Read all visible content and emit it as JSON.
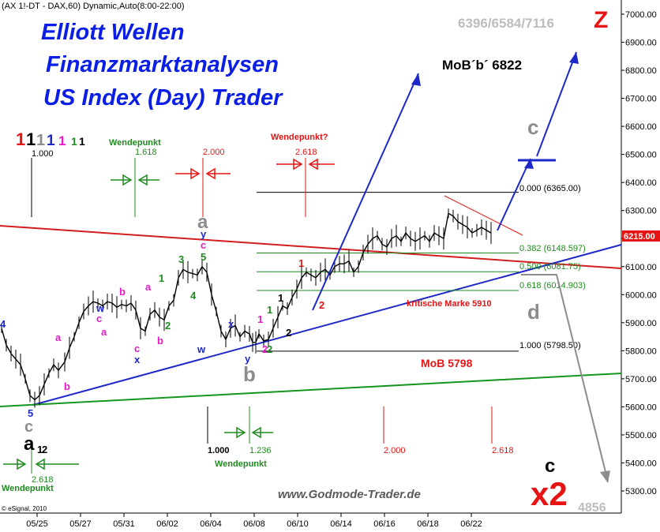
{
  "header": {
    "instrument": "(AX 1!-DT - DAX,60) Dynamic,Auto(8:00-22:00)",
    "values": "6396/6584/7116",
    "z_label": "Z"
  },
  "title": {
    "line1": "Elliott Wellen",
    "line2": "Finanzmarktanalysen",
    "line3": "US Index (Day) Trader"
  },
  "footer": {
    "website": "www.Godmode-Trader.de",
    "copyright": "© eSignal, 2010",
    "level": "4856"
  },
  "annotations": {
    "mob_b": "MoB´b´ 6822",
    "mob_low": "MoB 5798",
    "kritische": "kritische Marke 5910",
    "wendepunkt": "Wendepunkt",
    "wendepunkt_q": "Wendepunkt?",
    "fib_0": "0.000 (6365.00)",
    "fib_382": "0.382 (6148.597)",
    "fib_500": "0.500 (6081.75)",
    "fib_618": "0.618 (6014.903)",
    "fib_1000": "1.000 (5798.50)",
    "price_now": "6215.00",
    "wave_c": "c",
    "wave_d": "d",
    "wave_x2": "x2",
    "wave_a": "a",
    "wave_b": "b",
    "ratio_1000": "1.000",
    "ratio_1618": "1.618",
    "ratio_2000": "2.000",
    "ratio_2618": "2.618",
    "ratio_1236": "1.236"
  },
  "chart_data": {
    "type": "candlestick",
    "xlabel": "",
    "ylabel": "",
    "ylim": [
      5220,
      7060
    ],
    "x_ticks": [
      "05/25",
      "05/27",
      "05/31",
      "06/02",
      "06/04",
      "06/08",
      "06/10",
      "06/14",
      "06/16",
      "06/18",
      "06/22"
    ],
    "y_ticks": [
      "5300.00",
      "5400.00",
      "5500.00",
      "5600.00",
      "5700.00",
      "5800.00",
      "5900.00",
      "6000.00",
      "6100.00",
      "6200.00",
      "6300.00",
      "6400.00",
      "6500.00",
      "6600.00",
      "6700.00",
      "6800.00",
      "6900.00",
      "7000.00"
    ],
    "price_path": [
      [
        0,
        5880
      ],
      [
        6,
        5820
      ],
      [
        12,
        5790
      ],
      [
        18,
        5770
      ],
      [
        24,
        5750
      ],
      [
        30,
        5700
      ],
      [
        36,
        5640
      ],
      [
        42,
        5625
      ],
      [
        48,
        5640
      ],
      [
        54,
        5680
      ],
      [
        60,
        5720
      ],
      [
        66,
        5750
      ],
      [
        72,
        5730
      ],
      [
        80,
        5760
      ],
      [
        86,
        5810
      ],
      [
        92,
        5850
      ],
      [
        98,
        5900
      ],
      [
        104,
        5940
      ],
      [
        110,
        5960
      ],
      [
        116,
        5975
      ],
      [
        122,
        5970
      ],
      [
        128,
        5960
      ],
      [
        134,
        5975
      ],
      [
        140,
        5970
      ],
      [
        146,
        5955
      ],
      [
        152,
        5965
      ],
      [
        158,
        5960
      ],
      [
        164,
        5970
      ],
      [
        170,
        5945
      ],
      [
        176,
        5880
      ],
      [
        182,
        5870
      ],
      [
        188,
        5930
      ],
      [
        194,
        5945
      ],
      [
        200,
        5920
      ],
      [
        206,
        5910
      ],
      [
        212,
        5960
      ],
      [
        218,
        5980
      ],
      [
        224,
        6060
      ],
      [
        230,
        6090
      ],
      [
        236,
        6080
      ],
      [
        242,
        6075
      ],
      [
        248,
        6070
      ],
      [
        254,
        6100
      ],
      [
        260,
        6080
      ],
      [
        266,
        6000
      ],
      [
        272,
        5940
      ],
      [
        278,
        5870
      ],
      [
        284,
        5840
      ],
      [
        290,
        5880
      ],
      [
        296,
        5890
      ],
      [
        302,
        5850
      ],
      [
        308,
        5870
      ],
      [
        314,
        5860
      ],
      [
        318,
        5830
      ],
      [
        322,
        5830
      ],
      [
        326,
        5860
      ],
      [
        332,
        5835
      ],
      [
        338,
        5840
      ],
      [
        344,
        5880
      ],
      [
        350,
        5920
      ],
      [
        356,
        5960
      ],
      [
        362,
        5950
      ],
      [
        368,
        5990
      ],
      [
        374,
        6020
      ],
      [
        380,
        6060
      ],
      [
        386,
        6080
      ],
      [
        392,
        6070
      ],
      [
        398,
        6060
      ],
      [
        404,
        6080
      ],
      [
        410,
        6090
      ],
      [
        416,
        6070
      ],
      [
        422,
        6100
      ],
      [
        428,
        6110
      ],
      [
        434,
        6110
      ],
      [
        440,
        6120
      ],
      [
        446,
        6080
      ],
      [
        452,
        6100
      ],
      [
        458,
        6150
      ],
      [
        464,
        6180
      ],
      [
        470,
        6200
      ],
      [
        476,
        6210
      ],
      [
        482,
        6180
      ],
      [
        488,
        6170
      ],
      [
        494,
        6200
      ],
      [
        500,
        6210
      ],
      [
        506,
        6190
      ],
      [
        512,
        6220
      ],
      [
        518,
        6200
      ],
      [
        524,
        6190
      ],
      [
        530,
        6200
      ],
      [
        536,
        6210
      ],
      [
        542,
        6190
      ],
      [
        548,
        6220
      ],
      [
        554,
        6210
      ],
      [
        560,
        6200
      ],
      [
        566,
        6290
      ],
      [
        572,
        6280
      ],
      [
        578,
        6260
      ],
      [
        584,
        6250
      ],
      [
        590,
        6240
      ],
      [
        596,
        6220
      ],
      [
        602,
        6230
      ],
      [
        608,
        6240
      ],
      [
        614,
        6230
      ],
      [
        620,
        6220
      ]
    ],
    "fib_levels": [
      {
        "ratio": "0.000",
        "value": 6365.0
      },
      {
        "ratio": "0.382",
        "value": 6148.597
      },
      {
        "ratio": "0.500",
        "value": 6081.75
      },
      {
        "ratio": "0.618",
        "value": 6014.903
      },
      {
        "ratio": "1.000",
        "value": 5798.5
      }
    ],
    "current_price": 6215.0,
    "key_levels": {
      "mob_b": 6822,
      "mob": 5798,
      "kritische_marke": 5910,
      "z_target": 4856
    }
  },
  "colors": {
    "title_blue": "#0a1ee6",
    "red": "#e61414",
    "green": "#1e8c1e",
    "gray": "#8c8c8c",
    "blue_line": "#1e28c8",
    "red_line": "#d21e1e",
    "green_line": "#14961e",
    "magenta": "#e619c8"
  }
}
